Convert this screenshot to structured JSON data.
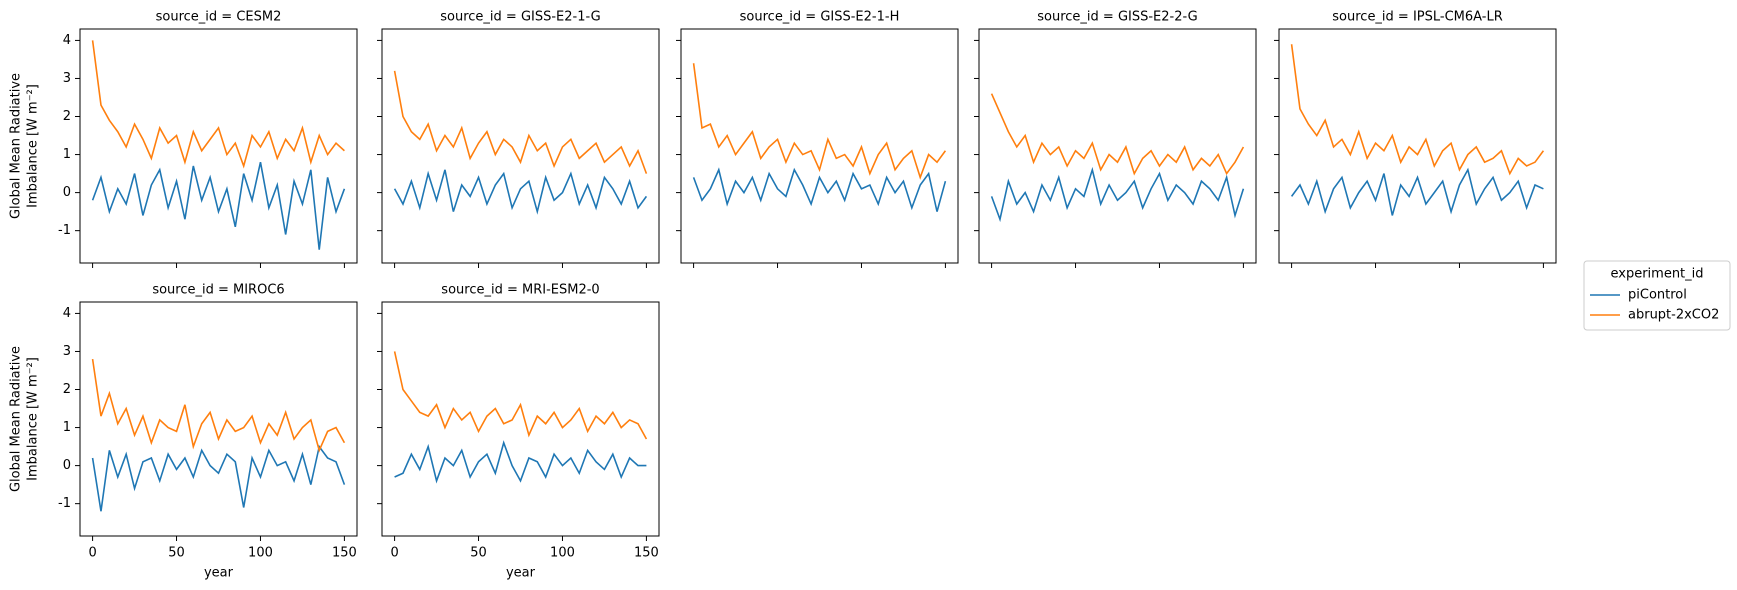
{
  "chart_data": [
    {
      "type": "line",
      "title": "source_id = CESM2",
      "ylabel": [
        "Global Mean Radiative",
        "Imbalance [W m⁻²]"
      ],
      "show_xticklabels": false,
      "show_yticklabels": true,
      "x": [
        0,
        5,
        10,
        15,
        20,
        25,
        30,
        35,
        40,
        45,
        50,
        55,
        60,
        65,
        70,
        75,
        80,
        85,
        90,
        95,
        100,
        105,
        110,
        115,
        120,
        125,
        130,
        135,
        140,
        145,
        150
      ],
      "series": [
        {
          "name": "piControl",
          "color": "#1f77b4",
          "values": [
            -0.2,
            0.4,
            -0.5,
            0.1,
            -0.3,
            0.5,
            -0.6,
            0.2,
            0.6,
            -0.4,
            0.3,
            -0.7,
            0.7,
            -0.2,
            0.4,
            -0.5,
            0.1,
            -0.9,
            0.5,
            -0.2,
            0.8,
            -0.4,
            0.2,
            -1.1,
            0.3,
            -0.3,
            0.6,
            -1.5,
            0.4,
            -0.5,
            0.1
          ]
        },
        {
          "name": "abrupt-2xCO2",
          "color": "#ff7f0e",
          "values": [
            4.0,
            2.3,
            1.9,
            1.6,
            1.2,
            1.8,
            1.4,
            0.9,
            1.7,
            1.3,
            1.5,
            0.8,
            1.6,
            1.1,
            1.4,
            1.7,
            1.0,
            1.3,
            0.7,
            1.5,
            1.2,
            1.6,
            0.9,
            1.4,
            1.1,
            1.7,
            0.8,
            1.5,
            1.0,
            1.3,
            1.1
          ]
        }
      ],
      "xlim": [
        -7.5,
        157.5
      ],
      "ylim": [
        -1.85,
        4.3
      ],
      "xticks": [
        0,
        50,
        100,
        150
      ],
      "yticks": [
        -1,
        0,
        1,
        2,
        3,
        4
      ]
    },
    {
      "type": "line",
      "title": "source_id = GISS-E2-1-G",
      "show_xticklabels": false,
      "show_yticklabels": false,
      "x": [
        0,
        5,
        10,
        15,
        20,
        25,
        30,
        35,
        40,
        45,
        50,
        55,
        60,
        65,
        70,
        75,
        80,
        85,
        90,
        95,
        100,
        105,
        110,
        115,
        120,
        125,
        130,
        135,
        140,
        145,
        150
      ],
      "series": [
        {
          "name": "piControl",
          "color": "#1f77b4",
          "values": [
            0.1,
            -0.3,
            0.3,
            -0.4,
            0.5,
            -0.2,
            0.6,
            -0.5,
            0.2,
            -0.1,
            0.4,
            -0.3,
            0.2,
            0.5,
            -0.4,
            0.1,
            0.3,
            -0.5,
            0.4,
            -0.2,
            0.0,
            0.5,
            -0.3,
            0.2,
            -0.4,
            0.4,
            0.1,
            -0.3,
            0.3,
            -0.4,
            -0.1
          ]
        },
        {
          "name": "abrupt-2xCO2",
          "color": "#ff7f0e",
          "values": [
            3.2,
            2.0,
            1.6,
            1.4,
            1.8,
            1.1,
            1.5,
            1.2,
            1.7,
            0.9,
            1.3,
            1.6,
            1.0,
            1.4,
            1.2,
            0.8,
            1.5,
            1.1,
            1.3,
            0.7,
            1.2,
            1.4,
            0.9,
            1.1,
            1.3,
            0.8,
            1.0,
            1.2,
            0.7,
            1.1,
            0.5
          ]
        }
      ],
      "xlim": [
        -7.5,
        157.5
      ],
      "ylim": [
        -1.85,
        4.3
      ],
      "xticks": [
        0,
        50,
        100,
        150
      ],
      "yticks": [
        -1,
        0,
        1,
        2,
        3,
        4
      ]
    },
    {
      "type": "line",
      "title": "source_id = GISS-E2-1-H",
      "show_xticklabels": false,
      "show_yticklabels": false,
      "x": [
        0,
        5,
        10,
        15,
        20,
        25,
        30,
        35,
        40,
        45,
        50,
        55,
        60,
        65,
        70,
        75,
        80,
        85,
        90,
        95,
        100,
        105,
        110,
        115,
        120,
        125,
        130,
        135,
        140,
        145,
        150
      ],
      "series": [
        {
          "name": "piControl",
          "color": "#1f77b4",
          "values": [
            0.4,
            -0.2,
            0.1,
            0.6,
            -0.3,
            0.3,
            0.0,
            0.4,
            -0.2,
            0.5,
            0.1,
            -0.1,
            0.6,
            0.2,
            -0.3,
            0.4,
            0.0,
            0.3,
            -0.2,
            0.5,
            0.1,
            0.2,
            -0.3,
            0.4,
            0.0,
            0.3,
            -0.4,
            0.2,
            0.5,
            -0.5,
            0.3
          ]
        },
        {
          "name": "abrupt-2xCO2",
          "color": "#ff7f0e",
          "values": [
            3.4,
            1.7,
            1.8,
            1.2,
            1.5,
            1.0,
            1.3,
            1.6,
            0.9,
            1.2,
            1.4,
            0.8,
            1.3,
            1.0,
            1.1,
            0.6,
            1.4,
            0.9,
            1.0,
            0.7,
            1.2,
            0.5,
            1.0,
            1.3,
            0.6,
            0.9,
            1.1,
            0.4,
            1.0,
            0.8,
            1.1
          ]
        }
      ],
      "xlim": [
        -7.5,
        157.5
      ],
      "ylim": [
        -1.85,
        4.3
      ],
      "xticks": [
        0,
        50,
        100,
        150
      ],
      "yticks": [
        -1,
        0,
        1,
        2,
        3,
        4
      ]
    },
    {
      "type": "line",
      "title": "source_id = GISS-E2-2-G",
      "show_xticklabels": false,
      "show_yticklabels": false,
      "x": [
        0,
        5,
        10,
        15,
        20,
        25,
        30,
        35,
        40,
        45,
        50,
        55,
        60,
        65,
        70,
        75,
        80,
        85,
        90,
        95,
        100,
        105,
        110,
        115,
        120,
        125,
        130,
        135,
        140,
        145,
        150
      ],
      "series": [
        {
          "name": "piControl",
          "color": "#1f77b4",
          "values": [
            -0.1,
            -0.7,
            0.3,
            -0.3,
            0.0,
            -0.5,
            0.2,
            -0.2,
            0.4,
            -0.4,
            0.1,
            -0.1,
            0.6,
            -0.3,
            0.2,
            -0.2,
            0.0,
            0.3,
            -0.4,
            0.1,
            0.5,
            -0.2,
            0.2,
            0.0,
            -0.3,
            0.3,
            0.1,
            -0.2,
            0.4,
            -0.6,
            0.1
          ]
        },
        {
          "name": "abrupt-2xCO2",
          "color": "#ff7f0e",
          "values": [
            2.6,
            2.1,
            1.6,
            1.2,
            1.5,
            0.8,
            1.3,
            1.0,
            1.2,
            0.7,
            1.1,
            0.9,
            1.3,
            0.6,
            1.0,
            0.8,
            1.2,
            0.5,
            0.9,
            1.1,
            0.7,
            1.0,
            0.8,
            1.2,
            0.6,
            0.9,
            0.7,
            1.0,
            0.5,
            0.8,
            1.2
          ]
        }
      ],
      "xlim": [
        -7.5,
        157.5
      ],
      "ylim": [
        -1.85,
        4.3
      ],
      "xticks": [
        0,
        50,
        100,
        150
      ],
      "yticks": [
        -1,
        0,
        1,
        2,
        3,
        4
      ]
    },
    {
      "type": "line",
      "title": "source_id = IPSL-CM6A-LR",
      "show_xticklabels": false,
      "show_yticklabels": false,
      "x": [
        0,
        5,
        10,
        15,
        20,
        25,
        30,
        35,
        40,
        45,
        50,
        55,
        60,
        65,
        70,
        75,
        80,
        85,
        90,
        95,
        100,
        105,
        110,
        115,
        120,
        125,
        130,
        135,
        140,
        145,
        150
      ],
      "series": [
        {
          "name": "piControl",
          "color": "#1f77b4",
          "values": [
            -0.1,
            0.2,
            -0.3,
            0.3,
            -0.5,
            0.1,
            0.4,
            -0.4,
            0.0,
            0.3,
            -0.2,
            0.5,
            -0.6,
            0.2,
            -0.1,
            0.4,
            -0.3,
            0.0,
            0.3,
            -0.5,
            0.2,
            0.6,
            -0.3,
            0.1,
            0.4,
            -0.2,
            0.0,
            0.3,
            -0.4,
            0.2,
            0.1
          ]
        },
        {
          "name": "abrupt-2xCO2",
          "color": "#ff7f0e",
          "values": [
            3.9,
            2.2,
            1.8,
            1.5,
            1.9,
            1.2,
            1.4,
            1.0,
            1.6,
            0.9,
            1.3,
            1.1,
            1.5,
            0.8,
            1.2,
            1.0,
            1.4,
            0.7,
            1.1,
            1.3,
            0.6,
            1.0,
            1.2,
            0.8,
            0.9,
            1.1,
            0.5,
            0.9,
            0.7,
            0.8,
            1.1
          ]
        }
      ],
      "xlim": [
        -7.5,
        157.5
      ],
      "ylim": [
        -1.85,
        4.3
      ],
      "xticks": [
        0,
        50,
        100,
        150
      ],
      "yticks": [
        -1,
        0,
        1,
        2,
        3,
        4
      ]
    },
    {
      "type": "line",
      "title": "source_id = MIROC6",
      "ylabel": [
        "Global Mean Radiative",
        "Imbalance [W m⁻²]"
      ],
      "xlabel": "year",
      "show_xticklabels": true,
      "show_yticklabels": true,
      "x": [
        0,
        5,
        10,
        15,
        20,
        25,
        30,
        35,
        40,
        45,
        50,
        55,
        60,
        65,
        70,
        75,
        80,
        85,
        90,
        95,
        100,
        105,
        110,
        115,
        120,
        125,
        130,
        135,
        140,
        145,
        150
      ],
      "series": [
        {
          "name": "piControl",
          "color": "#1f77b4",
          "values": [
            0.2,
            -1.2,
            0.4,
            -0.3,
            0.3,
            -0.6,
            0.1,
            0.2,
            -0.4,
            0.3,
            -0.1,
            0.2,
            -0.3,
            0.4,
            0.0,
            -0.2,
            0.3,
            0.1,
            -1.1,
            0.2,
            -0.3,
            0.4,
            0.0,
            0.1,
            -0.4,
            0.3,
            -0.5,
            0.5,
            0.2,
            0.1,
            -0.5
          ]
        },
        {
          "name": "abrupt-2xCO2",
          "color": "#ff7f0e",
          "values": [
            2.8,
            1.3,
            1.9,
            1.1,
            1.5,
            0.8,
            1.3,
            0.6,
            1.2,
            1.0,
            0.9,
            1.6,
            0.5,
            1.1,
            1.4,
            0.7,
            1.2,
            0.9,
            1.0,
            1.3,
            0.6,
            1.1,
            0.8,
            1.4,
            0.7,
            1.0,
            1.2,
            0.4,
            0.9,
            1.0,
            0.6
          ]
        }
      ],
      "xlim": [
        -7.5,
        157.5
      ],
      "ylim": [
        -1.85,
        4.3
      ],
      "xticks": [
        0,
        50,
        100,
        150
      ],
      "yticks": [
        -1,
        0,
        1,
        2,
        3,
        4
      ]
    },
    {
      "type": "line",
      "title": "source_id = MRI-ESM2-0",
      "xlabel": "year",
      "show_xticklabels": true,
      "show_yticklabels": false,
      "x": [
        0,
        5,
        10,
        15,
        20,
        25,
        30,
        35,
        40,
        45,
        50,
        55,
        60,
        65,
        70,
        75,
        80,
        85,
        90,
        95,
        100,
        105,
        110,
        115,
        120,
        125,
        130,
        135,
        140,
        145,
        150
      ],
      "series": [
        {
          "name": "piControl",
          "color": "#1f77b4",
          "values": [
            -0.3,
            -0.2,
            0.3,
            -0.1,
            0.5,
            -0.4,
            0.2,
            0.0,
            0.4,
            -0.3,
            0.1,
            0.3,
            -0.2,
            0.6,
            0.0,
            -0.4,
            0.2,
            0.1,
            -0.3,
            0.3,
            0.0,
            0.2,
            -0.2,
            0.4,
            0.1,
            -0.1,
            0.3,
            -0.3,
            0.2,
            0.0,
            0.0
          ]
        },
        {
          "name": "abrupt-2xCO2",
          "color": "#ff7f0e",
          "values": [
            3.0,
            2.0,
            1.7,
            1.4,
            1.3,
            1.6,
            1.0,
            1.5,
            1.2,
            1.4,
            0.9,
            1.3,
            1.5,
            1.1,
            1.2,
            1.6,
            0.8,
            1.3,
            1.1,
            1.4,
            1.0,
            1.2,
            1.5,
            0.9,
            1.3,
            1.1,
            1.4,
            1.0,
            1.2,
            1.1,
            0.7
          ]
        }
      ],
      "xlim": [
        -7.5,
        157.5
      ],
      "ylim": [
        -1.85,
        4.3
      ],
      "xticks": [
        0,
        50,
        100,
        150
      ],
      "yticks": [
        -1,
        0,
        1,
        2,
        3,
        4
      ]
    }
  ],
  "legend": {
    "title": "experiment_id",
    "position": "right"
  }
}
